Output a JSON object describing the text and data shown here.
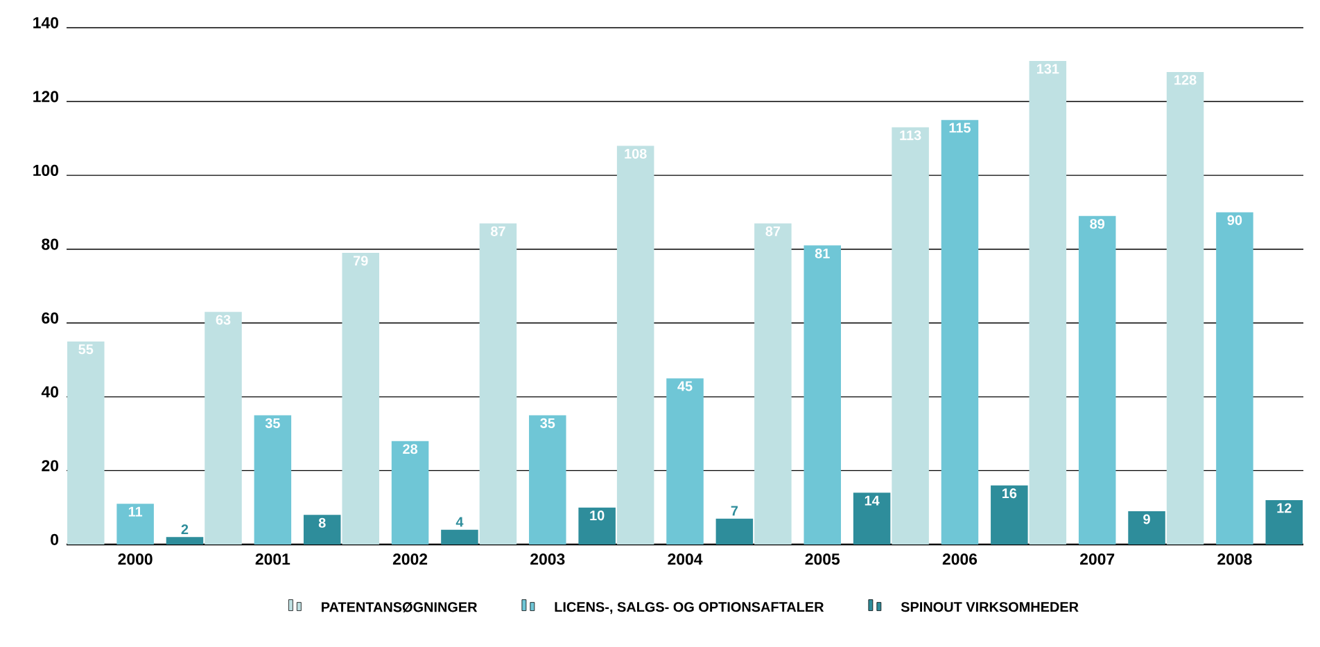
{
  "chart_data": {
    "type": "bar",
    "categories": [
      "2000",
      "2001",
      "2002",
      "2003",
      "2004",
      "2005",
      "2006",
      "2007",
      "2008"
    ],
    "series": [
      {
        "name": "PATENTANSØGNINGER",
        "color": "#bfe1e3",
        "values": [
          55,
          63,
          79,
          87,
          108,
          87,
          113,
          131,
          128
        ]
      },
      {
        "name": "LICENS-, SALGS- OG OPTIONSAFTALER",
        "color": "#6fc6d6",
        "values": [
          11,
          35,
          28,
          35,
          45,
          81,
          115,
          89,
          90
        ]
      },
      {
        "name": "SPINOUT VIRKSOMHEDER",
        "color": "#2e8d9b",
        "values": [
          2,
          8,
          4,
          10,
          7,
          14,
          16,
          9,
          12
        ]
      }
    ],
    "ylim": [
      0,
      140
    ],
    "yticks": [
      0,
      20,
      40,
      60,
      80,
      100,
      120,
      140
    ],
    "grid": "y",
    "legend": "bottom",
    "data_labels": true
  }
}
